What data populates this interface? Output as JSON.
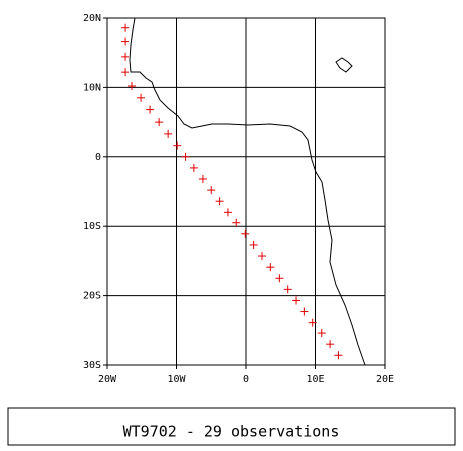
{
  "chart_data": {
    "type": "scatter",
    "title": "WT9702 - 29 observations",
    "x": [
      -17.4,
      -17.4,
      -17.4,
      -17.4,
      -16.4,
      -15.1,
      -13.8,
      -12.5,
      -11.2,
      -9.9,
      -8.7,
      -7.5,
      -6.2,
      -5.0,
      -3.8,
      -2.6,
      -1.4,
      -0.1,
      1.1,
      2.3,
      3.5,
      4.8,
      6.0,
      7.2,
      8.4,
      9.6,
      10.9,
      12.1,
      13.3
    ],
    "values": [
      18.6,
      16.6,
      14.4,
      12.2,
      10.2,
      8.5,
      6.8,
      5.0,
      3.3,
      1.6,
      0.0,
      -1.6,
      -3.2,
      -4.8,
      -6.4,
      -8.0,
      -9.5,
      -11.1,
      -12.7,
      -14.3,
      -15.9,
      -17.5,
      -19.1,
      -20.7,
      -22.3,
      -23.9,
      -25.4,
      -27.0,
      -28.6
    ],
    "color": "#e00000",
    "xlim": [
      -20,
      20
    ],
    "xticks": [
      {
        "value": -20,
        "label": "20W"
      },
      {
        "value": -10,
        "label": "10W"
      },
      0,
      {
        "value": 10,
        "label": "10E"
      },
      {
        "value": 20,
        "label": "20E"
      }
    ],
    "ylim": [
      -30,
      20
    ],
    "yticks": [
      {
        "value": 20,
        "label": "20N"
      },
      {
        "value": 10,
        "label": "10N"
      },
      0,
      {
        "value": -10,
        "label": "10S"
      },
      {
        "value": -20,
        "label": "20S"
      },
      {
        "value": -30,
        "label": "30S"
      }
    ],
    "grid": true
  }
}
